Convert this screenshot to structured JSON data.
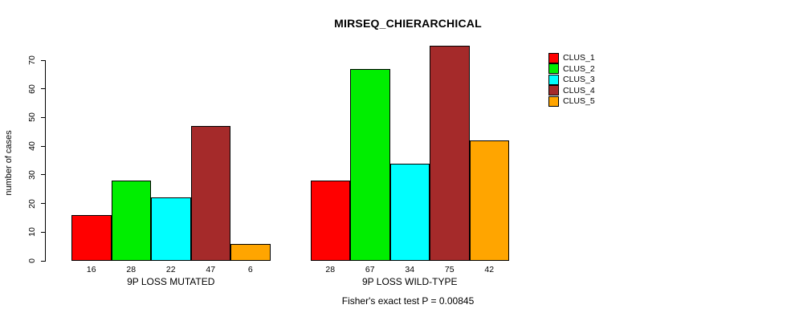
{
  "chart_data": {
    "type": "bar",
    "title": "MIRSEQ_CHIERARCHICAL",
    "ylabel": "number of cases",
    "ylim": [
      0,
      70
    ],
    "yticks": [
      0,
      10,
      20,
      30,
      40,
      50,
      60,
      70
    ],
    "grid": false,
    "legend_position": "right",
    "categories": [
      "9P LOSS MUTATED",
      "9P LOSS WILD-TYPE"
    ],
    "series": [
      {
        "name": "CLUS_1",
        "color": "#FF0000",
        "values": [
          16,
          28
        ]
      },
      {
        "name": "CLUS_2",
        "color": "#00EE00",
        "values": [
          28,
          67
        ]
      },
      {
        "name": "CLUS_3",
        "color": "#00FFFF",
        "values": [
          22,
          34
        ]
      },
      {
        "name": "CLUS_4",
        "color": "#A52A2A",
        "values": [
          47,
          75
        ]
      },
      {
        "name": "CLUS_5",
        "color": "#FFA500",
        "values": [
          6,
          42
        ]
      }
    ],
    "bar_value_labels": true,
    "footnote": "Fisher's exact test P = 0.00845"
  }
}
